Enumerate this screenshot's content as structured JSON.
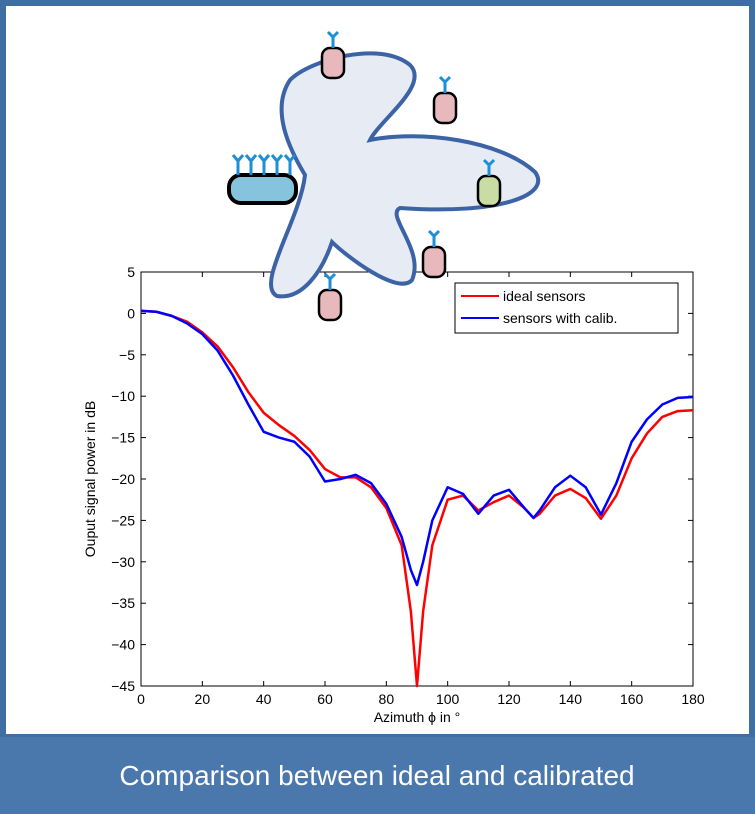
{
  "caption": "Comparison between ideal and calibrated",
  "chart_data": {
    "type": "line",
    "xlabel": "Azimuth ϕ in °",
    "ylabel": "Ouput signal power in dB",
    "x": [
      0,
      5,
      10,
      15,
      20,
      25,
      30,
      35,
      40,
      45,
      50,
      55,
      60,
      65,
      70,
      75,
      80,
      85,
      88,
      90,
      92,
      95,
      100,
      105,
      110,
      115,
      120,
      125,
      128,
      130,
      135,
      140,
      145,
      150,
      155,
      160,
      165,
      170,
      175,
      180
    ],
    "series": [
      {
        "name": "ideal sensors",
        "color": "#ff0000",
        "values": [
          0.3,
          0.2,
          -0.3,
          -1,
          -2.3,
          -4,
          -6.5,
          -9.5,
          -12,
          -13.5,
          -14.8,
          -16.5,
          -18.8,
          -19.8,
          -19.8,
          -21,
          -23.5,
          -28,
          -36,
          -45,
          -36,
          -28,
          -22.5,
          -22,
          -23.8,
          -22.8,
          -22,
          -23.5,
          -24.7,
          -24.2,
          -22,
          -21.2,
          -22.3,
          -24.8,
          -22,
          -17.5,
          -14.5,
          -12.5,
          -11.8,
          -11.7
        ]
      },
      {
        "name": "sensors with calib.",
        "color": "#0000ff",
        "values": [
          0.3,
          0.2,
          -0.3,
          -1.2,
          -2.5,
          -4.5,
          -7.5,
          -11,
          -14.3,
          -15,
          -15.5,
          -17.3,
          -20.3,
          -20,
          -19.5,
          -20.5,
          -23,
          -27,
          -31,
          -32.8,
          -30,
          -25,
          -21,
          -21.8,
          -24.2,
          -22,
          -21.3,
          -23.5,
          -24.7,
          -23.8,
          -21,
          -19.6,
          -21,
          -24.3,
          -20.5,
          -15.5,
          -12.8,
          -11,
          -10.2,
          -10.1
        ]
      }
    ],
    "xlim": [
      0,
      180
    ],
    "xticks": [
      0,
      20,
      40,
      60,
      80,
      100,
      120,
      140,
      160,
      180
    ],
    "ylim": [
      -45,
      5
    ],
    "yticks": [
      5,
      0,
      {
        "value": -5,
        "label": "−5"
      },
      {
        "value": -10,
        "label": "−10"
      },
      {
        "value": -15,
        "label": "−15"
      },
      {
        "value": -20,
        "label": "−20"
      },
      {
        "value": -25,
        "label": "−25"
      },
      {
        "value": -30,
        "label": "−30"
      },
      {
        "value": -35,
        "label": "−35"
      },
      {
        "value": -40,
        "label": "−40"
      },
      {
        "value": -45,
        "label": "−45"
      }
    ],
    "grid": false,
    "legend": "upper right"
  }
}
